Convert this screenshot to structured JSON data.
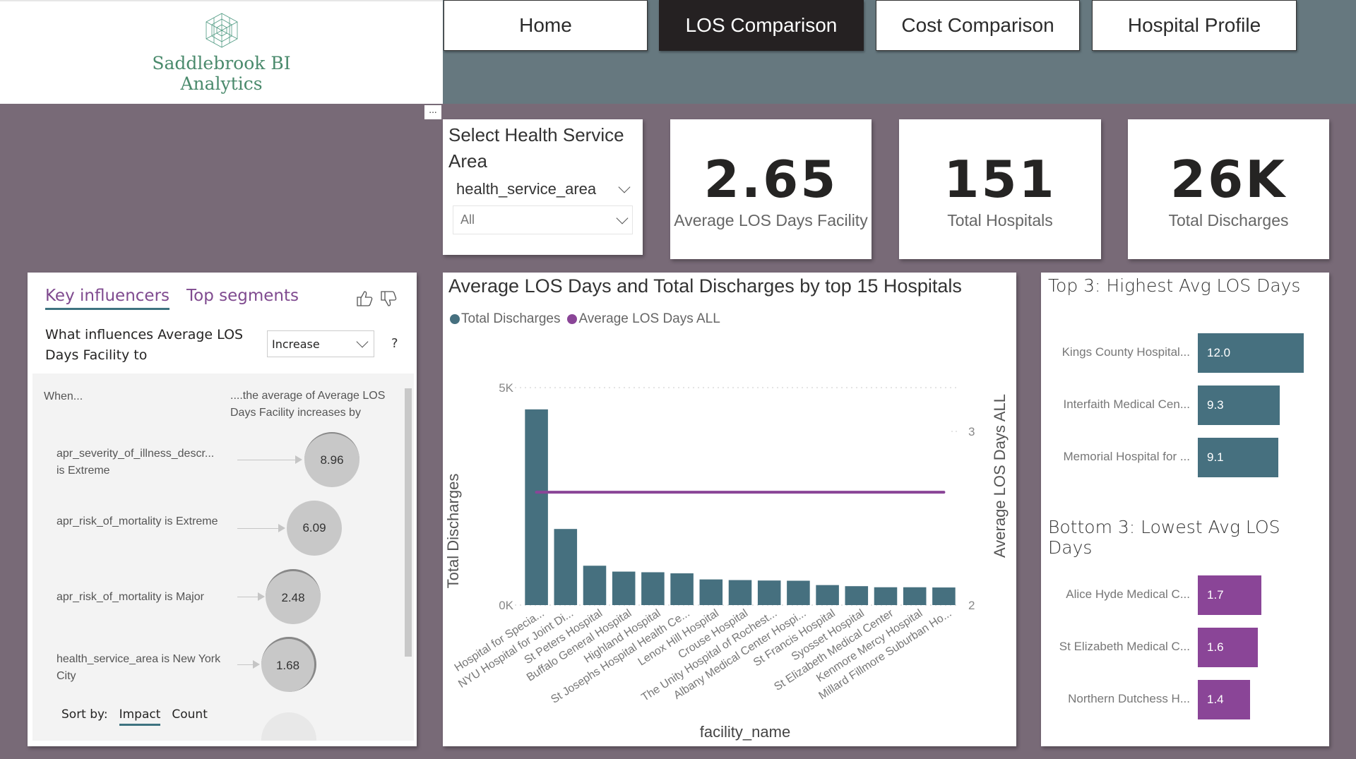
{
  "brand": {
    "line1": "Saddlebrook BI",
    "line2": "Analytics",
    "color": "#4a8a6c"
  },
  "nav": {
    "items": [
      {
        "label": "Home",
        "active": false
      },
      {
        "label": "LOS Comparison",
        "active": true
      },
      {
        "label": "Cost Comparison",
        "active": false
      },
      {
        "label": "Hospital Profile",
        "active": false
      }
    ],
    "more_label": "..."
  },
  "slicer": {
    "title": "Select Health Service Area",
    "field": "health_service_area",
    "selected": "All"
  },
  "kpis": [
    {
      "value": "2.65",
      "label": "Average LOS Days Facility"
    },
    {
      "value": "151",
      "label": "Total Hospitals"
    },
    {
      "value": "26K",
      "label": "Total Discharges"
    }
  ],
  "key_influencers": {
    "tabs": [
      {
        "label": "Key influencers",
        "active": true
      },
      {
        "label": "Top segments",
        "active": false
      }
    ],
    "question": "What influences Average LOS Days Facility to",
    "direction": "Increase",
    "help": "?",
    "col_when": "When...",
    "col_effect": "....the average of Average LOS Days Facility increases by",
    "rows": [
      {
        "label": "apr_severity_of_illness_descr... is Extreme",
        "value": "8.96"
      },
      {
        "label": "apr_risk_of_mortality is Extreme",
        "value": "6.09"
      },
      {
        "label": "apr_risk_of_mortality is Major",
        "value": "2.48"
      },
      {
        "label": "health_service_area is New York City",
        "value": "1.68"
      }
    ],
    "sort_label": "Sort by:",
    "sort_options": [
      {
        "label": "Impact",
        "active": true
      },
      {
        "label": "Count",
        "active": false
      }
    ]
  },
  "colors": {
    "bar": "#46707f",
    "line": "#8a4597",
    "nav_band": "#66787f",
    "background": "#786a77"
  },
  "chart_data": [
    {
      "type": "bar+line",
      "title": "Average LOS Days and Total Discharges by top 15 Hospitals",
      "xlabel": "facility_name",
      "ylabel": "Total Discharges",
      "y2label": "Average LOS Days ALL",
      "legend": [
        "Total Discharges",
        "Average LOS Days ALL"
      ],
      "legend_position": "top-left",
      "ylim": [
        0,
        5000
      ],
      "yticks": [
        "0K",
        "5K"
      ],
      "y2lim": [
        2,
        3
      ],
      "y2ticks": [
        "2",
        "3"
      ],
      "categories": [
        "Hospital for Specia...",
        "NYU Hospital for Joint Di...",
        "St Peters Hospital",
        "Buffalo General Hospital",
        "Highland Hospital",
        "St Josephs Hospital Health Ce...",
        "Lenox Hill Hospital",
        "Crouse Hospital",
        "The Unity Hospital of Rochest...",
        "Albany Medical Center Hospi...",
        "St Francis Hospital",
        "Syosset Hospital",
        "St Elizabeth Medical Center",
        "Kenmore Mercy Hospital",
        "Millard Fillmore Suburban Ho..."
      ],
      "series": [
        {
          "name": "Total Discharges",
          "type": "bar",
          "values": [
            4500,
            1750,
            905,
            770,
            755,
            730,
            590,
            575,
            565,
            560,
            460,
            435,
            410,
            410,
            405
          ]
        },
        {
          "name": "Average LOS Days ALL",
          "type": "line",
          "values": [
            2.65,
            2.65,
            2.65,
            2.65,
            2.65,
            2.65,
            2.65,
            2.65,
            2.65,
            2.65,
            2.65,
            2.65,
            2.65,
            2.65,
            2.65
          ]
        }
      ]
    },
    {
      "type": "bar",
      "orientation": "horizontal",
      "title": "Top 3: Highest Avg LOS Days",
      "categories": [
        "Kings County Hospital...",
        "Interfaith Medical Cen...",
        "Memorial Hospital for ..."
      ],
      "values": [
        12.0,
        9.3,
        9.1
      ],
      "labels": [
        "12.0",
        "9.3",
        "9.1"
      ]
    },
    {
      "type": "bar",
      "orientation": "horizontal",
      "title": "Bottom 3: Lowest Avg LOS Days",
      "categories": [
        "Alice Hyde Medical C...",
        "St Elizabeth Medical C...",
        "Northern Dutchess H..."
      ],
      "values": [
        1.7,
        1.6,
        1.4
      ],
      "labels": [
        "1.7",
        "1.6",
        "1.4"
      ]
    }
  ]
}
